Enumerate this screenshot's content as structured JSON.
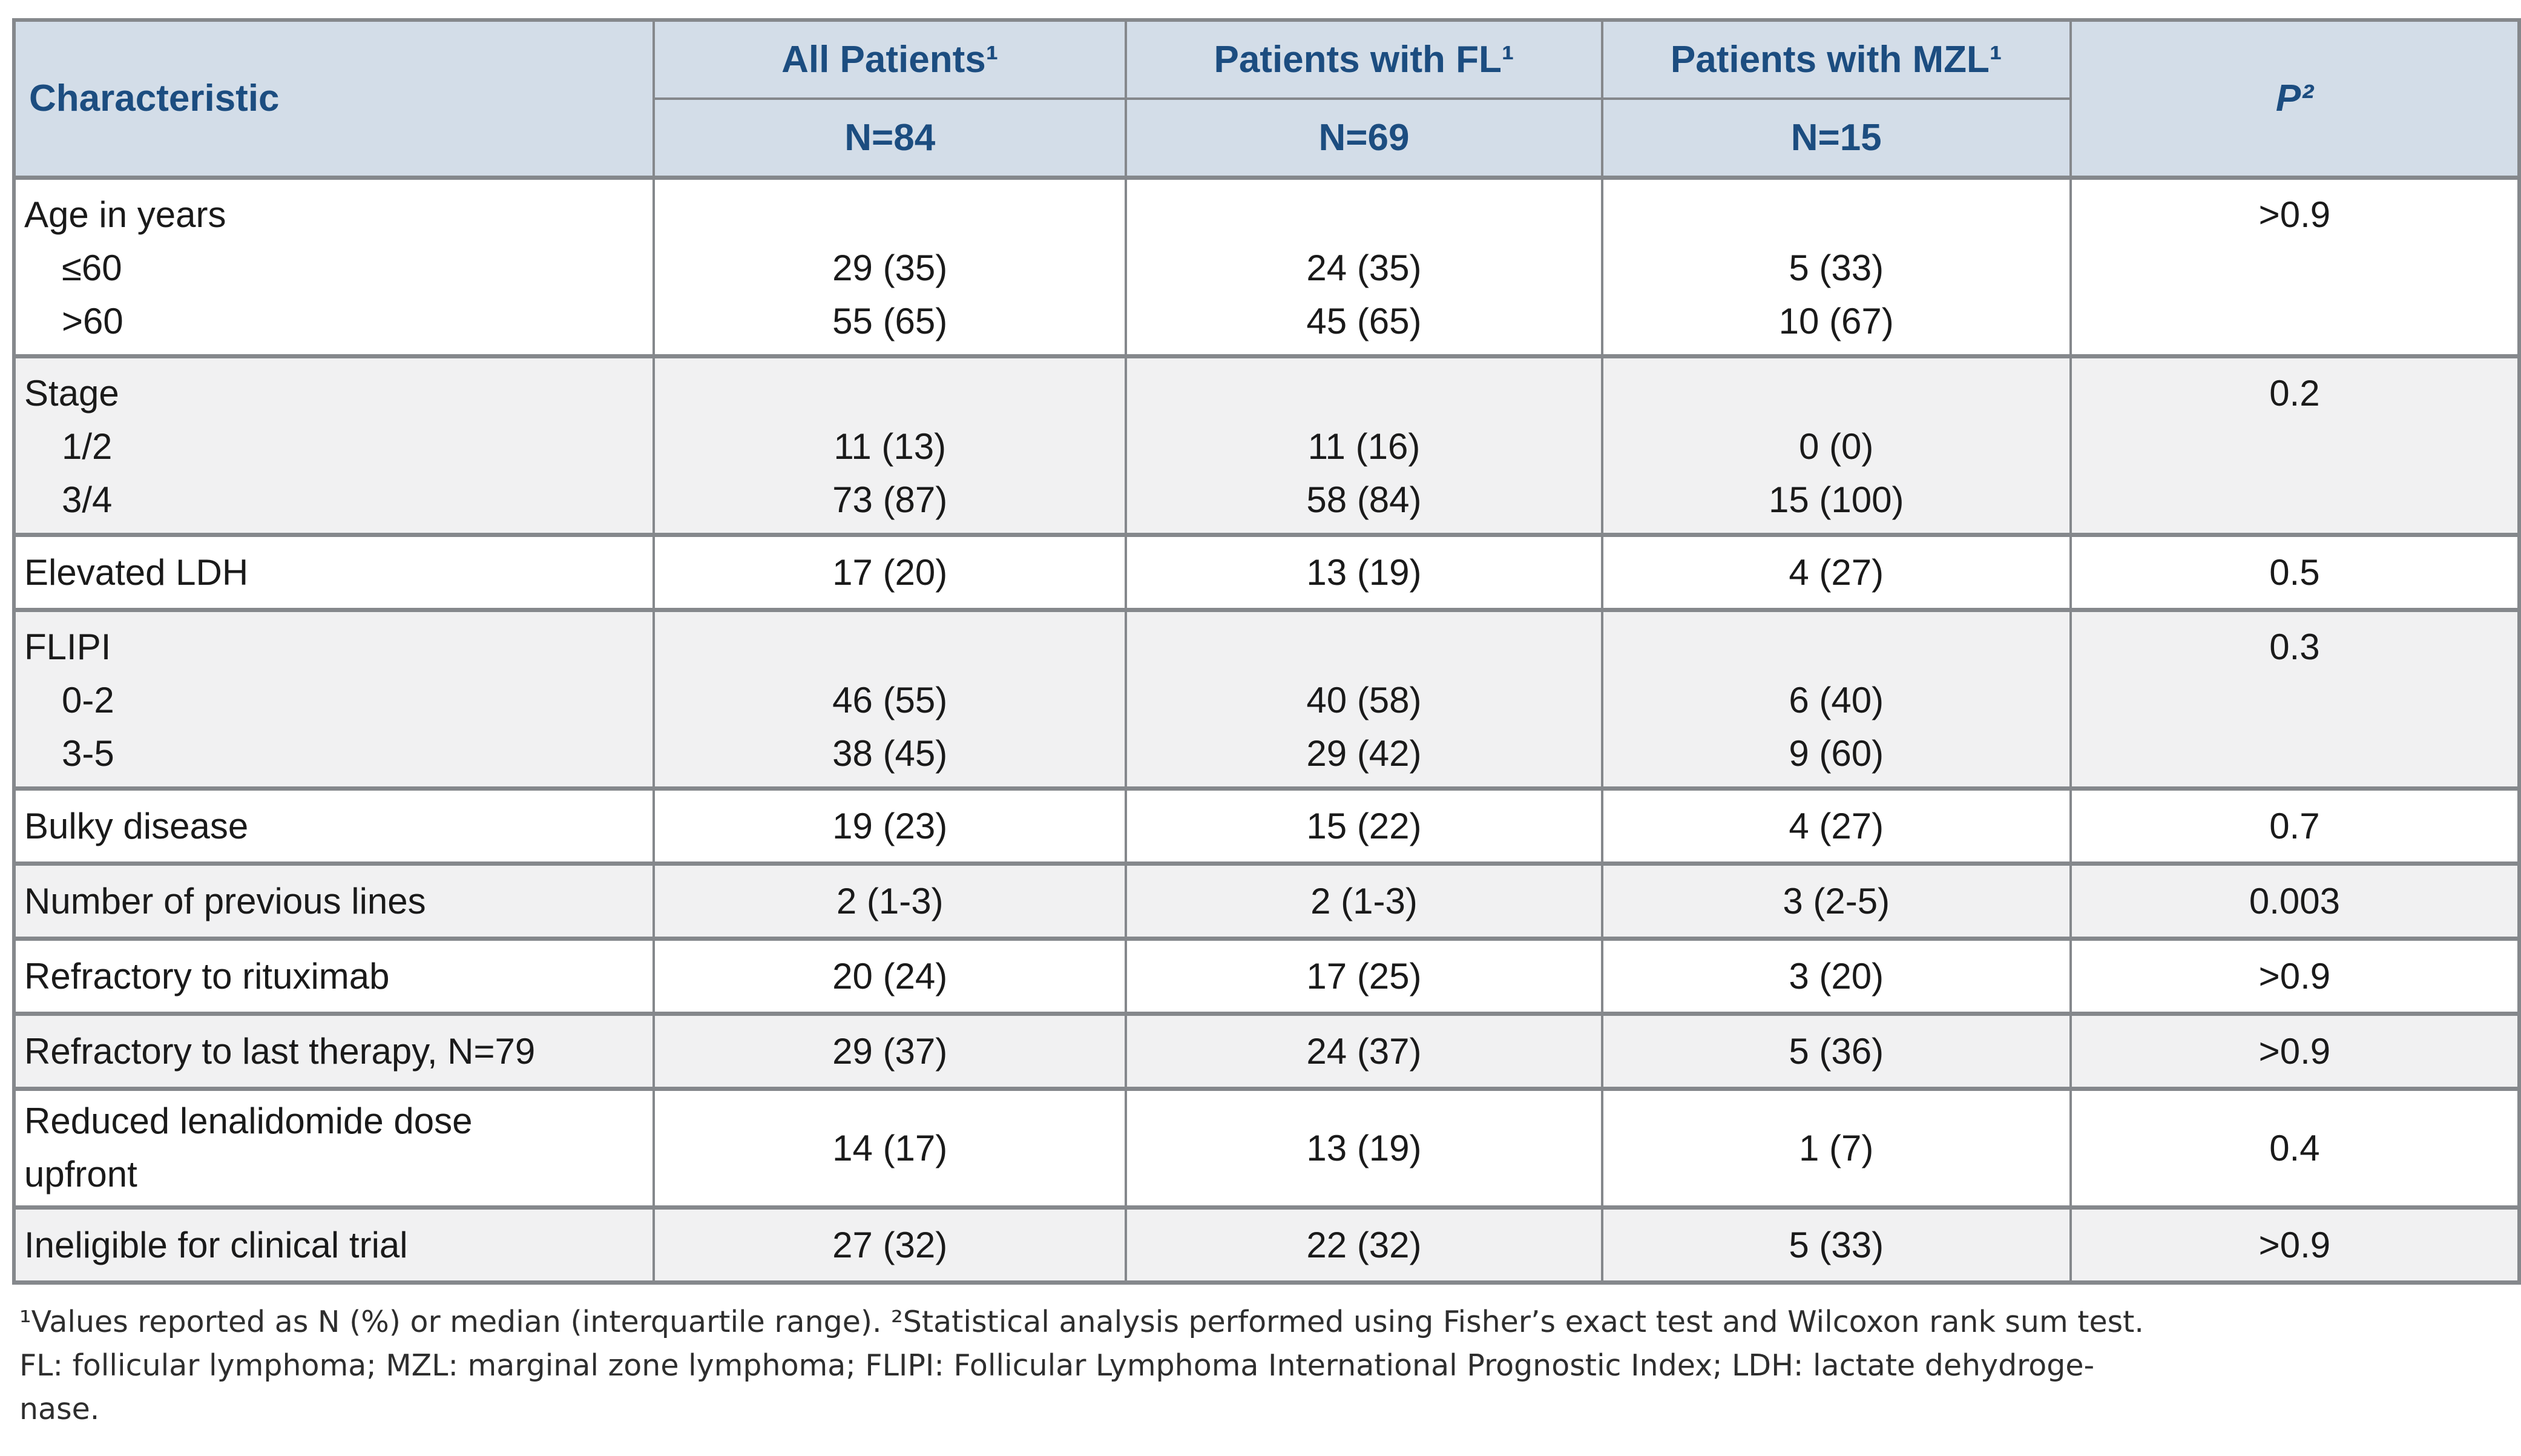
{
  "table": {
    "header": {
      "characteristic": "Characteristic",
      "col_all": "All Patients¹",
      "col_fl": "Patients with FL¹",
      "col_mzl": "Patients with MZL¹",
      "p_label": "P²",
      "n_all": "N=84",
      "n_fl": "N=69",
      "n_mzl": "N=15"
    },
    "rows": [
      {
        "shade": "white",
        "label": "Age in years",
        "subs": [
          {
            "label": "≤60",
            "all": "29 (35)",
            "fl": "24 (35)",
            "mzl": "5 (33)"
          },
          {
            "label": ">60",
            "all": "55 (65)",
            "fl": "45 (65)",
            "mzl": "10 (67)"
          }
        ],
        "p": ">0.9"
      },
      {
        "shade": "gray",
        "label": "Stage",
        "subs": [
          {
            "label": "1/2",
            "all": "11 (13)",
            "fl": "11 (16)",
            "mzl": "0 (0)"
          },
          {
            "label": "3/4",
            "all": "73 (87)",
            "fl": "58 (84)",
            "mzl": "15 (100)"
          }
        ],
        "p": "0.2"
      },
      {
        "shade": "white",
        "label": "Elevated LDH",
        "all": "17 (20)",
        "fl": "13 (19)",
        "mzl": "4 (27)",
        "p": "0.5"
      },
      {
        "shade": "gray",
        "label": "FLIPI",
        "subs": [
          {
            "label": "0-2",
            "all": "46 (55)",
            "fl": "40 (58)",
            "mzl": "6 (40)"
          },
          {
            "label": "3-5",
            "all": "38 (45)",
            "fl": "29 (42)",
            "mzl": "9 (60)"
          }
        ],
        "p": "0.3"
      },
      {
        "shade": "white",
        "label": "Bulky disease",
        "all": "19 (23)",
        "fl": "15 (22)",
        "mzl": "4 (27)",
        "p": "0.7"
      },
      {
        "shade": "gray",
        "label": "Number of previous lines",
        "all": "2 (1-3)",
        "fl": "2 (1-3)",
        "mzl": "3 (2-5)",
        "p": "0.003"
      },
      {
        "shade": "white",
        "label": "Refractory to rituximab",
        "all": "20 (24)",
        "fl": "17 (25)",
        "mzl": "3 (20)",
        "p": ">0.9"
      },
      {
        "shade": "gray",
        "label": "Refractory to last therapy, N=79",
        "all": "29 (37)",
        "fl": "24 (37)",
        "mzl": "5 (36)",
        "p": ">0.9"
      },
      {
        "shade": "white",
        "label": "Reduced lenalidomide dose upfront",
        "label_lines": [
          "Reduced lenalidomide dose",
          "upfront"
        ],
        "tall": true,
        "all": "14 (17)",
        "fl": "13 (19)",
        "mzl": "1 (7)",
        "p": "0.4"
      },
      {
        "shade": "gray",
        "label": "Ineligible for clinical trial",
        "all": "27 (32)",
        "fl": "22 (32)",
        "mzl": "5 (33)",
        "p": ">0.9"
      }
    ]
  },
  "footnote": {
    "lines": [
      "¹Values reported as N (%) or median (interquartile range). ²Statistical analysis performed using Fisher’s exact test and Wilcoxon rank sum test.",
      "FL: follicular lymphoma; MZL: marginal zone lymphoma; FLIPI: Follicular Lymphoma International Prognostic Index; LDH: lactate dehydroge-",
      "nase."
    ]
  },
  "colors": {
    "header_bg": "#d3dde8",
    "header_text": "#1c4d80",
    "border": "#85888c",
    "shade_row_bg": "#f1f1f2",
    "body_text": "#1a1a1a"
  }
}
